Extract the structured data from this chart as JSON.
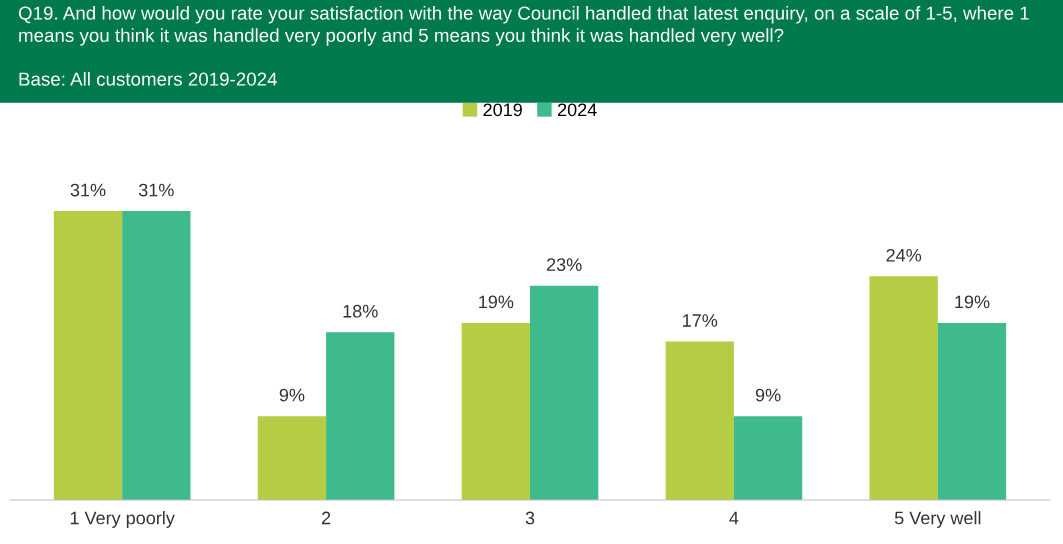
{
  "chart_data": {
    "type": "bar",
    "title": "Q19. And how would you rate your satisfaction with the way Council handled that latest enquiry, on a scale of 1-5, where 1 means you think it was handled very poorly and 5 means you think it was handled very well?",
    "subtitle": "Base: All customers 2019-2024",
    "categories": [
      "1 Very poorly",
      "2",
      "3",
      "4",
      "5 Very well"
    ],
    "series": [
      {
        "name": "2019",
        "color": "#b5cc45",
        "values": [
          31,
          9,
          19,
          17,
          24
        ],
        "value_labels": [
          "31%",
          "9%",
          "19%",
          "17%",
          "24%"
        ]
      },
      {
        "name": "2024",
        "color": "#3fba8c",
        "values": [
          31,
          18,
          23,
          9,
          19
        ],
        "value_labels": [
          "31%",
          "18%",
          "23%",
          "9%",
          "19%"
        ]
      }
    ],
    "legend": "top",
    "grid": false
  }
}
